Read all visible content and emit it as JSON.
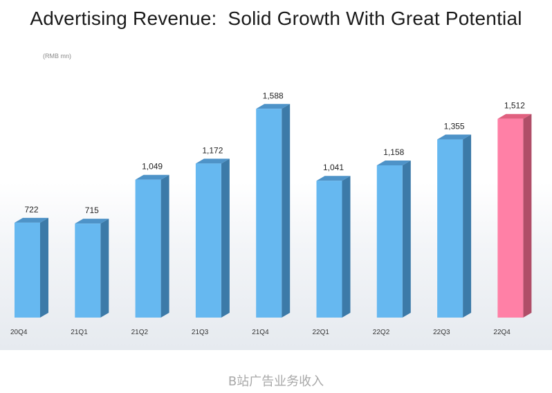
{
  "slide": {
    "title": "Advertising Revenue:  Solid Growth With Great Potential",
    "unit": "(RMB mn)"
  },
  "caption": "B站广告业务收入",
  "colors": {
    "bar": "#66b8f0",
    "bar_top": "#4e93c8",
    "bar_side": "#3c7aa8",
    "highlight": "#ff80a6",
    "highlight_top": "#e0607f",
    "highlight_side": "#b04e68"
  },
  "chart_data": {
    "type": "bar",
    "categories": [
      "20Q4",
      "21Q1",
      "21Q2",
      "21Q3",
      "21Q4",
      "22Q1",
      "22Q2",
      "22Q3",
      "22Q4"
    ],
    "values": [
      722,
      715,
      1049,
      1172,
      1588,
      1041,
      1158,
      1355,
      1512
    ],
    "data_labels": [
      "722",
      "715",
      "1,049",
      "1,172",
      "1,588",
      "1,041",
      "1,158",
      "1,355",
      "1,512"
    ],
    "highlight_index": 8,
    "style": "3d-column",
    "grid": false,
    "legend": "none"
  }
}
